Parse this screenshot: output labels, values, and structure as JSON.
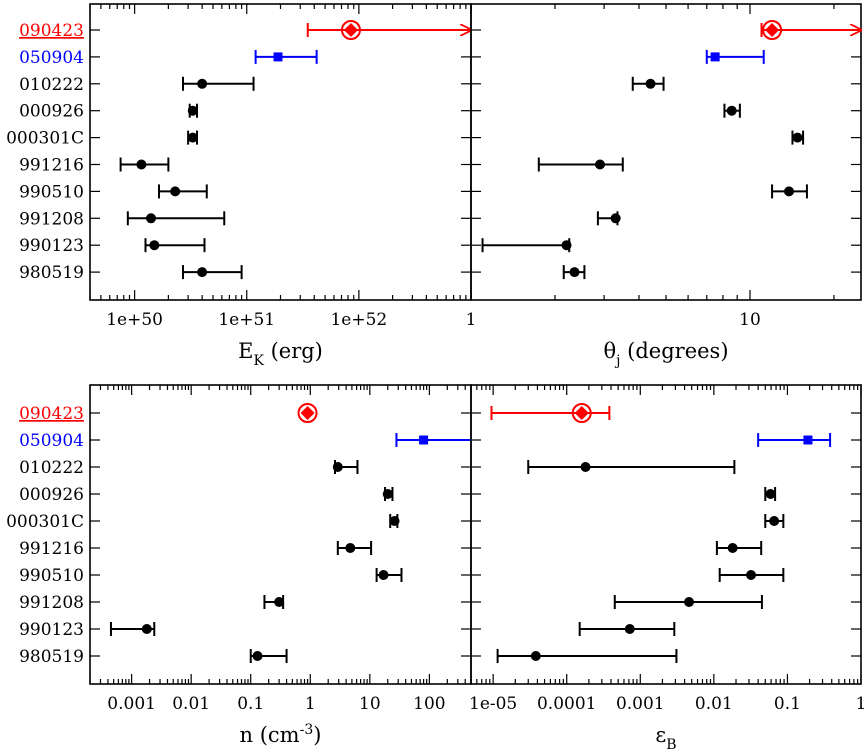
{
  "colors": {
    "default": "#000000",
    "highlight_red": "#ff0000",
    "highlight_blue": "#0000ff"
  },
  "grb_list": [
    {
      "name": "090423",
      "color": "#ff0000",
      "underline": true
    },
    {
      "name": "050904",
      "color": "#0000ff",
      "underline": false
    },
    {
      "name": "010222",
      "color": "#000000",
      "underline": false
    },
    {
      "name": "000926",
      "color": "#000000",
      "underline": false
    },
    {
      "name": "000301C",
      "color": "#000000",
      "underline": false
    },
    {
      "name": "991216",
      "color": "#000000",
      "underline": false
    },
    {
      "name": "990510",
      "color": "#000000",
      "underline": false
    },
    {
      "name": "991208",
      "color": "#000000",
      "underline": false
    },
    {
      "name": "990123",
      "color": "#000000",
      "underline": false
    },
    {
      "name": "980519",
      "color": "#000000",
      "underline": false
    }
  ],
  "chart_data": [
    {
      "id": "ek",
      "type": "scatter",
      "scale": "log",
      "xlim": [
        4e+49,
        1e+53
      ],
      "xlabel": "E",
      "xlabel_sub": "K",
      "xlabel_rest": " (erg)",
      "tick_labels": [
        {
          "value": 1e+50,
          "label": "1e+50"
        },
        {
          "value": 1e+51,
          "label": "1e+51"
        },
        {
          "value": 1e+52,
          "label": "1e+52"
        }
      ],
      "points": [
        {
          "grb": "090423",
          "value": 8.5e+51,
          "low": 3.5e+51,
          "high": 1e+53,
          "upper_open": true,
          "marker": "circle-diamond",
          "color": "#ff0000"
        },
        {
          "grb": "050904",
          "value": 1.9e+51,
          "low": 1.2e+51,
          "high": 4.2e+51,
          "marker": "square",
          "color": "#0000ff"
        },
        {
          "grb": "010222",
          "value": 4e+50,
          "low": 2.7e+50,
          "high": 1.15e+51,
          "marker": "circle",
          "color": "#000000"
        },
        {
          "grb": "000926",
          "value": 3.3e+50,
          "low": 3.1e+50,
          "high": 3.6e+50,
          "marker": "circle",
          "color": "#000000"
        },
        {
          "grb": "000301C",
          "value": 3.3e+50,
          "low": 3e+50,
          "high": 3.6e+50,
          "marker": "circle",
          "color": "#000000"
        },
        {
          "grb": "991216",
          "value": 1.15e+50,
          "low": 7.5e+49,
          "high": 2e+50,
          "marker": "circle",
          "color": "#000000"
        },
        {
          "grb": "990510",
          "value": 2.3e+50,
          "low": 1.65e+50,
          "high": 4.4e+50,
          "marker": "circle",
          "color": "#000000"
        },
        {
          "grb": "991208",
          "value": 1.4e+50,
          "low": 8.7e+49,
          "high": 6.3e+50,
          "marker": "circle",
          "color": "#000000"
        },
        {
          "grb": "990123",
          "value": 1.5e+50,
          "low": 1.25e+50,
          "high": 4.2e+50,
          "marker": "circle",
          "color": "#000000"
        },
        {
          "grb": "980519",
          "value": 4e+50,
          "low": 2.7e+50,
          "high": 9e+50,
          "marker": "circle",
          "color": "#000000"
        }
      ]
    },
    {
      "id": "theta",
      "type": "scatter",
      "scale": "log",
      "xlim": [
        1,
        25
      ],
      "xlabel": "θ",
      "xlabel_sub": "j",
      "xlabel_rest": "  (degrees)",
      "tick_labels": [
        {
          "value": 1,
          "label": "1"
        },
        {
          "value": 10,
          "label": "10"
        }
      ],
      "points": [
        {
          "grb": "090423",
          "value": 12,
          "low": 11,
          "high": 25,
          "upper_open": true,
          "marker": "circle-diamond",
          "color": "#ff0000"
        },
        {
          "grb": "050904",
          "value": 7.5,
          "low": 7.0,
          "high": 11.2,
          "marker": "square",
          "color": "#0000ff"
        },
        {
          "grb": "010222",
          "value": 4.4,
          "low": 3.8,
          "high": 4.9,
          "marker": "circle",
          "color": "#000000"
        },
        {
          "grb": "000926",
          "value": 8.6,
          "low": 8.1,
          "high": 9.2,
          "marker": "circle",
          "color": "#000000"
        },
        {
          "grb": "000301C",
          "value": 14.8,
          "low": 14.2,
          "high": 15.5,
          "marker": "circle",
          "color": "#000000"
        },
        {
          "grb": "991216",
          "value": 2.9,
          "low": 1.75,
          "high": 3.5,
          "marker": "circle",
          "color": "#000000"
        },
        {
          "grb": "990510",
          "value": 13.8,
          "low": 12.0,
          "high": 16.0,
          "marker": "circle",
          "color": "#000000"
        },
        {
          "grb": "991208",
          "value": 3.3,
          "low": 2.85,
          "high": 3.35,
          "marker": "circle",
          "color": "#000000"
        },
        {
          "grb": "990123",
          "value": 2.2,
          "low": 1.1,
          "high": 2.25,
          "marker": "circle",
          "color": "#000000"
        },
        {
          "grb": "980519",
          "value": 2.35,
          "low": 2.15,
          "high": 2.55,
          "marker": "circle",
          "color": "#000000"
        }
      ]
    },
    {
      "id": "density",
      "type": "scatter",
      "scale": "log",
      "xlim": [
        0.0002,
        500
      ],
      "xlabel": "n (cm",
      "xlabel_sup": "-3",
      "xlabel_rest": ")",
      "tick_labels": [
        {
          "value": 0.001,
          "label": "0.001"
        },
        {
          "value": 0.01,
          "label": "0.01"
        },
        {
          "value": 0.1,
          "label": "0.1"
        },
        {
          "value": 1,
          "label": "1"
        },
        {
          "value": 10,
          "label": "10"
        },
        {
          "value": 100,
          "label": "100"
        }
      ],
      "points": [
        {
          "grb": "090423",
          "value": 0.9,
          "low": 0.9,
          "high": 0.9,
          "marker": "circle-diamond",
          "color": "#ff0000"
        },
        {
          "grb": "050904",
          "value": 80,
          "low": 28,
          "high": 500,
          "upper_open": true,
          "marker": "square",
          "color": "#0000ff"
        },
        {
          "grb": "010222",
          "value": 2.9,
          "low": 2.6,
          "high": 6.2,
          "marker": "circle",
          "color": "#000000"
        },
        {
          "grb": "000926",
          "value": 20,
          "low": 18,
          "high": 24,
          "marker": "circle",
          "color": "#000000"
        },
        {
          "grb": "000301C",
          "value": 26,
          "low": 22,
          "high": 29,
          "marker": "circle",
          "color": "#000000"
        },
        {
          "grb": "991216",
          "value": 4.7,
          "low": 2.9,
          "high": 10.5,
          "marker": "circle",
          "color": "#000000"
        },
        {
          "grb": "990510",
          "value": 17,
          "low": 13,
          "high": 34,
          "marker": "circle",
          "color": "#000000"
        },
        {
          "grb": "991208",
          "value": 0.3,
          "low": 0.17,
          "high": 0.35,
          "marker": "circle",
          "color": "#000000"
        },
        {
          "grb": "990123",
          "value": 0.0018,
          "low": 0.00045,
          "high": 0.0024,
          "marker": "circle",
          "color": "#000000"
        },
        {
          "grb": "980519",
          "value": 0.13,
          "low": 0.1,
          "high": 0.4,
          "marker": "circle",
          "color": "#000000"
        }
      ]
    },
    {
      "id": "epsb",
      "type": "scatter",
      "scale": "log",
      "xlim": [
        5e-06,
        1
      ],
      "xlabel": "ε",
      "xlabel_sub": "B",
      "xlabel_rest": "",
      "tick_labels": [
        {
          "value": 1e-05,
          "label": "1e-05"
        },
        {
          "value": 0.0001,
          "label": "0.0001"
        },
        {
          "value": 0.001,
          "label": "0.001"
        },
        {
          "value": 0.01,
          "label": "0.01"
        },
        {
          "value": 0.1,
          "label": "0.1"
        },
        {
          "value": 1,
          "label": "1"
        }
      ],
      "points": [
        {
          "grb": "090423",
          "value": 0.00016,
          "low": 9.5e-06,
          "high": 0.00038,
          "marker": "circle-diamond",
          "color": "#ff0000"
        },
        {
          "grb": "050904",
          "value": 0.19,
          "low": 0.04,
          "high": 0.38,
          "marker": "square",
          "color": "#0000ff"
        },
        {
          "grb": "010222",
          "value": 0.00018,
          "low": 3e-05,
          "high": 0.019,
          "marker": "circle",
          "color": "#000000"
        },
        {
          "grb": "000926",
          "value": 0.059,
          "low": 0.05,
          "high": 0.068,
          "marker": "circle",
          "color": "#000000"
        },
        {
          "grb": "000301C",
          "value": 0.066,
          "low": 0.05,
          "high": 0.088,
          "marker": "circle",
          "color": "#000000"
        },
        {
          "grb": "991216",
          "value": 0.018,
          "low": 0.011,
          "high": 0.044,
          "marker": "circle",
          "color": "#000000"
        },
        {
          "grb": "990510",
          "value": 0.032,
          "low": 0.012,
          "high": 0.088,
          "marker": "circle",
          "color": "#000000"
        },
        {
          "grb": "991208",
          "value": 0.0046,
          "low": 0.00045,
          "high": 0.045,
          "marker": "circle",
          "color": "#000000"
        },
        {
          "grb": "990123",
          "value": 0.00072,
          "low": 0.00015,
          "high": 0.0029,
          "marker": "circle",
          "color": "#000000"
        },
        {
          "grb": "980519",
          "value": 3.8e-05,
          "low": 1.15e-05,
          "high": 0.0031,
          "marker": "circle",
          "color": "#000000"
        }
      ]
    }
  ]
}
